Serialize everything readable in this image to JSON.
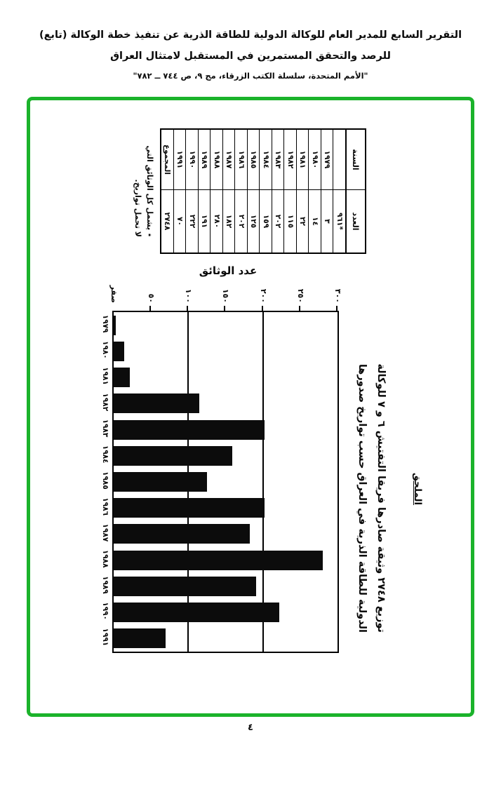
{
  "header": {
    "line1": "(تابع) التقرير السابع للمدير العام للوكالة الدولية للطاقة الذرية عن تنفيذ خطة الوكالة",
    "line2": "للرصد والتحقق المستمرين في المستقبل لامتثال العراق",
    "line3": "\"الأمم المتحدة، سلسلة الكتب الزرقاء، مج ٩، ص ٧٤٤ ــ ٧٨٢\""
  },
  "table": {
    "col_year": "السنة",
    "col_count": "العدد",
    "rows": [
      {
        "year": "",
        "count": "٩٦١*"
      },
      {
        "year": "١٩٧٩",
        "count": "٣"
      },
      {
        "year": "١٩٨٠",
        "count": "١٤"
      },
      {
        "year": "١٩٨١",
        "count": "٢٢"
      },
      {
        "year": "١٩٨٢",
        "count": "١١٥"
      },
      {
        "year": "١٩٨٣",
        "count": "٢٠٢"
      },
      {
        "year": "١٩٨٤",
        "count": "١٥٩"
      },
      {
        "year": "١٩٨٥",
        "count": "١٢٥"
      },
      {
        "year": "١٩٨٦",
        "count": "٢٠٢"
      },
      {
        "year": "١٩٨٧",
        "count": "١٨٢"
      },
      {
        "year": "١٩٨٨",
        "count": "٢٨٠"
      },
      {
        "year": "١٩٨٩",
        "count": "١٩١"
      },
      {
        "year": "١٩٩٠",
        "count": "٢٢٢"
      },
      {
        "year": "١٩٩١",
        "count": "٧٠"
      },
      {
        "year": "المجموع",
        "count": "٢٧٤٨"
      }
    ],
    "footnote_line1": "٭ يشمل كل الوثائق التي",
    "footnote_line2": "لا تحمل تواريخ."
  },
  "chart_data": {
    "type": "bar",
    "title": "عدد الوثائق",
    "categories": [
      "١٩٧٩",
      "١٩٨٠",
      "١٩٨١",
      "١٩٨٢",
      "١٩٨٣",
      "١٩٨٤",
      "١٩٨٥",
      "١٩٨٦",
      "١٩٨٧",
      "١٩٨٨",
      "١٩٨٩",
      "١٩٩٠",
      "١٩٩١"
    ],
    "values": [
      3,
      14,
      22,
      115,
      202,
      159,
      125,
      202,
      182,
      280,
      191,
      222,
      70
    ],
    "ylim": [
      0,
      300
    ],
    "y_ticks": [
      {
        "value": 0,
        "label": "صفر"
      },
      {
        "value": 50,
        "label": "٥٠"
      },
      {
        "value": 100,
        "label": "١٠٠"
      },
      {
        "value": 150,
        "label": "١٥٠"
      },
      {
        "value": 200,
        "label": "٢٠٠"
      },
      {
        "value": 250,
        "label": "٢٥٠"
      },
      {
        "value": 300,
        "label": "٣٠٠"
      }
    ],
    "gridlines_at": [
      100,
      200
    ],
    "bar_color": "#0c0c0c",
    "rotated_on_page_deg": 90
  },
  "caption": {
    "line1": "توزيع ٢٧٤٨ وثيقة صادرها فريقا التفتيش ٦ و ٧ للوكالة",
    "line2": "الدولية للطاقة الذرية في العراق حسب تواريخ صدورها"
  },
  "annex_label": "الملحق",
  "page_number": "٤",
  "colors": {
    "border_green": "#1bb32b",
    "ink_black": "#0b0b0b"
  }
}
